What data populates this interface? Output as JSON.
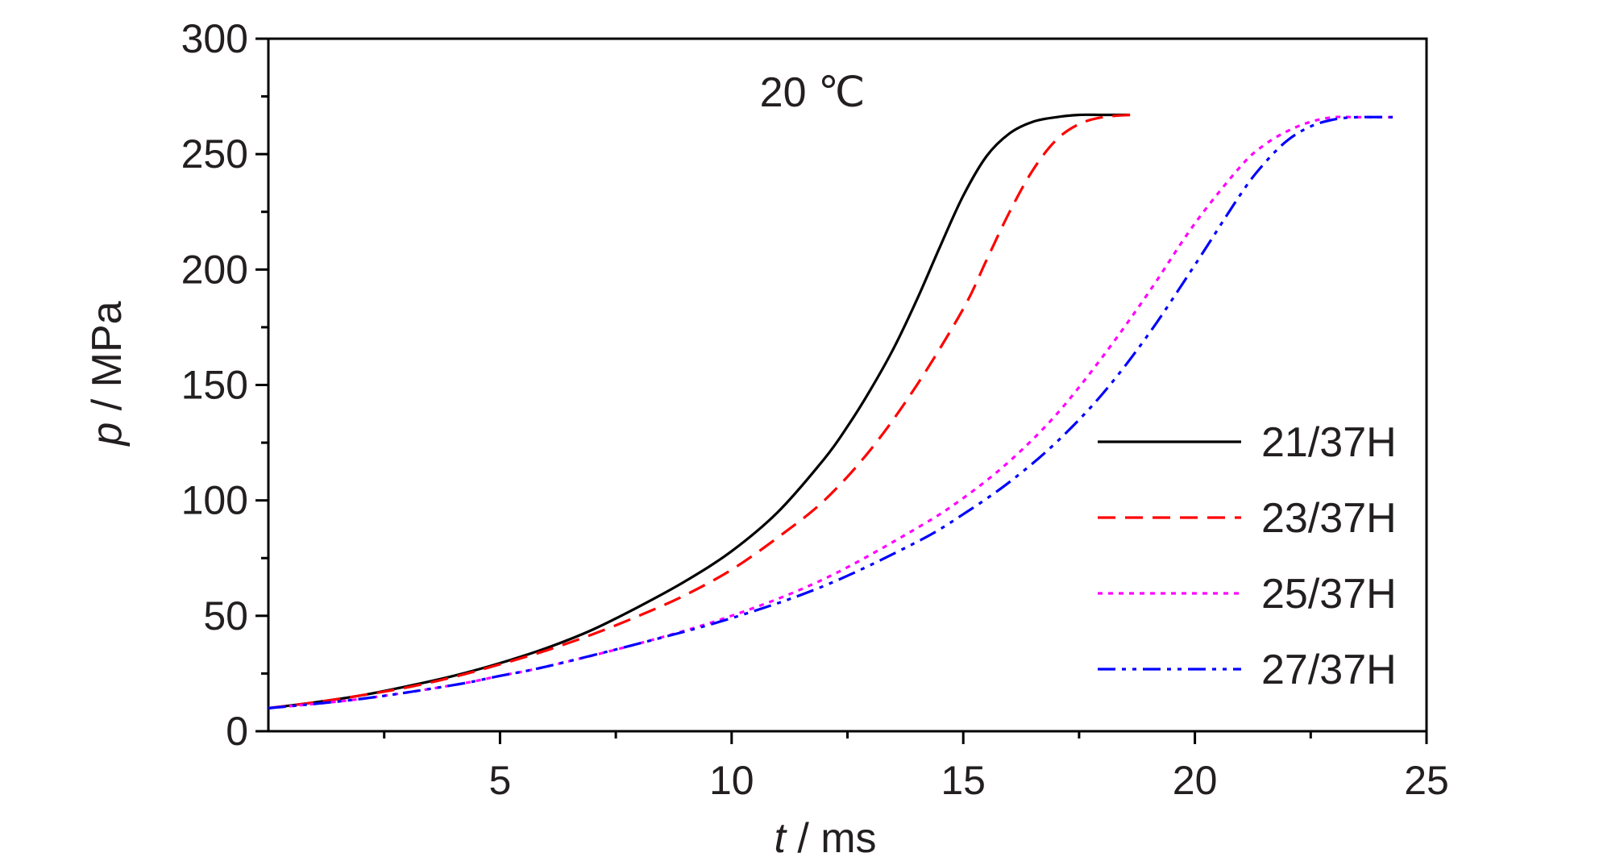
{
  "chart_data": {
    "type": "line",
    "title": "",
    "annotation": "20 ℃",
    "xlabel": {
      "italic": "t",
      "rest": " / ms"
    },
    "ylabel": {
      "italic": "p",
      "rest": " / MPa"
    },
    "xlim": [
      0,
      25
    ],
    "ylim": [
      0,
      300
    ],
    "xticks": [
      5,
      10,
      15,
      20,
      25
    ],
    "xtick_labels": [
      "5",
      "10",
      "15",
      "20",
      "25"
    ],
    "yticks": [
      0,
      50,
      100,
      150,
      200,
      250,
      300
    ],
    "ytick_labels": [
      "0",
      "50",
      "100",
      "150",
      "200",
      "250",
      "300"
    ],
    "grid": false,
    "legend_position": "center-right",
    "series": [
      {
        "name": "21/37H",
        "color": "#000000",
        "dash": "solid",
        "x": [
          0,
          1,
          2,
          3,
          4,
          5,
          6,
          7,
          8,
          9,
          10,
          11,
          12,
          12.5,
          13,
          13.5,
          14,
          14.5,
          15,
          15.5,
          16,
          16.5,
          17,
          17.5,
          18,
          18.6
        ],
        "y": [
          10,
          12.5,
          15.5,
          19.5,
          24,
          29.5,
          36,
          44,
          54,
          65,
          78,
          95,
          118,
          132,
          148,
          166,
          187,
          210,
          232,
          249,
          259,
          264,
          266,
          267,
          267,
          267
        ]
      },
      {
        "name": "23/37H",
        "color": "#ff0000",
        "dash": "dashed",
        "x": [
          0,
          1,
          2,
          3,
          4,
          5,
          6,
          7,
          8,
          9,
          10,
          11,
          12,
          13,
          14,
          15,
          15.5,
          16,
          16.5,
          17,
          17.5,
          18,
          18.6
        ],
        "y": [
          10,
          12.5,
          15.5,
          19,
          23.5,
          29,
          35,
          42,
          50,
          59,
          70,
          84,
          100,
          122,
          150,
          183,
          204,
          225,
          243,
          256,
          263,
          266,
          267
        ]
      },
      {
        "name": "25/37H",
        "color": "#ff00ff",
        "dash": "dotted",
        "x": [
          0,
          2,
          4,
          5,
          6,
          8,
          10,
          12,
          14,
          15,
          16,
          17,
          18,
          19,
          20,
          21,
          21.5,
          22,
          22.5,
          23,
          23.5,
          24.3
        ],
        "y": [
          10,
          14,
          20,
          24,
          28,
          38,
          50,
          66,
          88,
          101,
          117,
          137,
          162,
          190,
          220,
          245,
          254,
          260,
          264,
          266,
          266,
          266
        ]
      },
      {
        "name": "27/37H",
        "color": "#0000ff",
        "dash": "dashdotdot",
        "x": [
          0,
          2,
          4,
          5,
          6,
          8,
          10,
          12,
          14,
          15,
          16,
          17,
          18,
          19,
          20,
          21,
          21.5,
          22,
          22.5,
          23,
          23.5,
          24.3
        ],
        "y": [
          10,
          14,
          20,
          24,
          28,
          38,
          49,
          63,
          82,
          94,
          108,
          125,
          146,
          172,
          202,
          233,
          246,
          256,
          262,
          265,
          266,
          266
        ]
      }
    ]
  }
}
